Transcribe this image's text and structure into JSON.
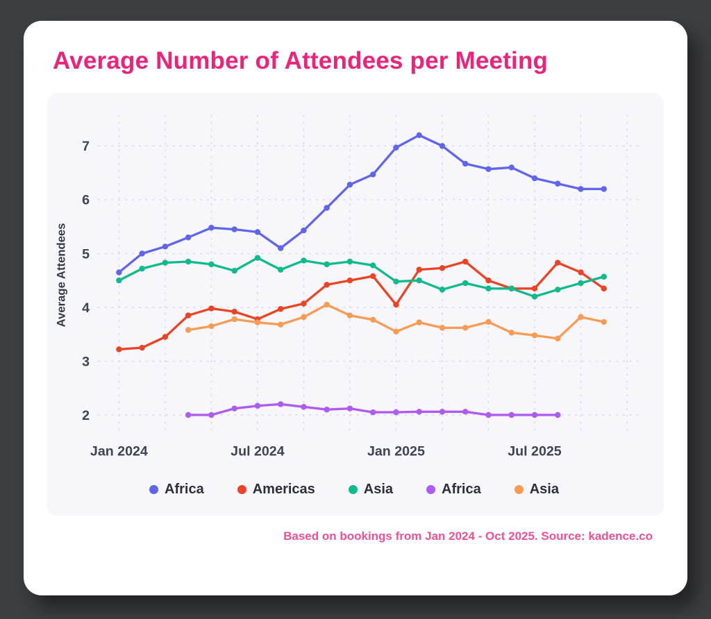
{
  "page": {
    "title": "Average Number of Attendees per Meeting",
    "footnote": "Based on bookings from Jan 2024 - Oct 2025. Source: kadence.co"
  },
  "colors": {
    "accent_pink": "#ec2379",
    "accent_pink_soft": "#f04f97",
    "card_bg": "#ffffff",
    "panel_bg": "#f7f7fb",
    "page_bg": "#3d3e40",
    "grid": "#d9dae4",
    "tick_text": "#3d4554"
  },
  "chart_data": {
    "type": "line",
    "title": "Average Number of Attendees per Meeting",
    "xlabel": "",
    "ylabel": "Average Attendees",
    "ylim": [
      1.7,
      7.5
    ],
    "y_ticks": [
      2,
      3,
      4,
      5,
      6,
      7
    ],
    "x_ticks": [
      {
        "label": "Jan 2024",
        "month": 0
      },
      {
        "label": "Jul 2024",
        "month": 6
      },
      {
        "label": "Jan 2025",
        "month": 12
      },
      {
        "label": "Jul 2025",
        "month": 18
      }
    ],
    "x_unit": "month index from Jan 2024",
    "grid": "dashed",
    "legend_position": "bottom",
    "series": [
      {
        "name": "Africa",
        "color": "#6065ee",
        "start_month": 0,
        "values": [
          4.65,
          5.0,
          5.13,
          5.3,
          5.48,
          5.45,
          5.4,
          5.1,
          5.43,
          5.85,
          6.28,
          6.47,
          6.97,
          7.2,
          7.0,
          6.67,
          6.57,
          6.6,
          6.4,
          6.3,
          6.2,
          6.2
        ]
      },
      {
        "name": "Americas",
        "color": "#ea4425",
        "start_month": 0,
        "values": [
          3.22,
          3.25,
          3.45,
          3.85,
          3.98,
          3.92,
          3.78,
          3.97,
          4.07,
          4.42,
          4.5,
          4.58,
          4.05,
          4.7,
          4.73,
          4.85,
          4.5,
          4.35,
          4.35,
          4.83,
          4.65,
          4.35
        ]
      },
      {
        "name": "Asia",
        "color": "#0fba8c",
        "start_month": 0,
        "values": [
          4.5,
          4.72,
          4.83,
          4.85,
          4.8,
          4.68,
          4.92,
          4.7,
          4.87,
          4.8,
          4.85,
          4.78,
          4.48,
          4.5,
          4.33,
          4.45,
          4.35,
          4.35,
          4.2,
          4.33,
          4.45,
          4.57
        ]
      },
      {
        "name": "Africa",
        "color": "#ad5cf2",
        "start_month": 3,
        "values": [
          2.0,
          2.0,
          2.12,
          2.17,
          2.2,
          2.15,
          2.1,
          2.12,
          2.05,
          2.05,
          2.06,
          2.06,
          2.06,
          2.0,
          2.0,
          2.0,
          2.0
        ]
      },
      {
        "name": "Asia",
        "color": "#f99b55",
        "start_month": 3,
        "values": [
          3.58,
          3.65,
          3.78,
          3.72,
          3.68,
          3.82,
          4.05,
          3.85,
          3.77,
          3.55,
          3.72,
          3.62,
          3.62,
          3.73,
          3.53,
          3.48,
          3.42,
          3.82,
          3.73
        ]
      }
    ]
  }
}
